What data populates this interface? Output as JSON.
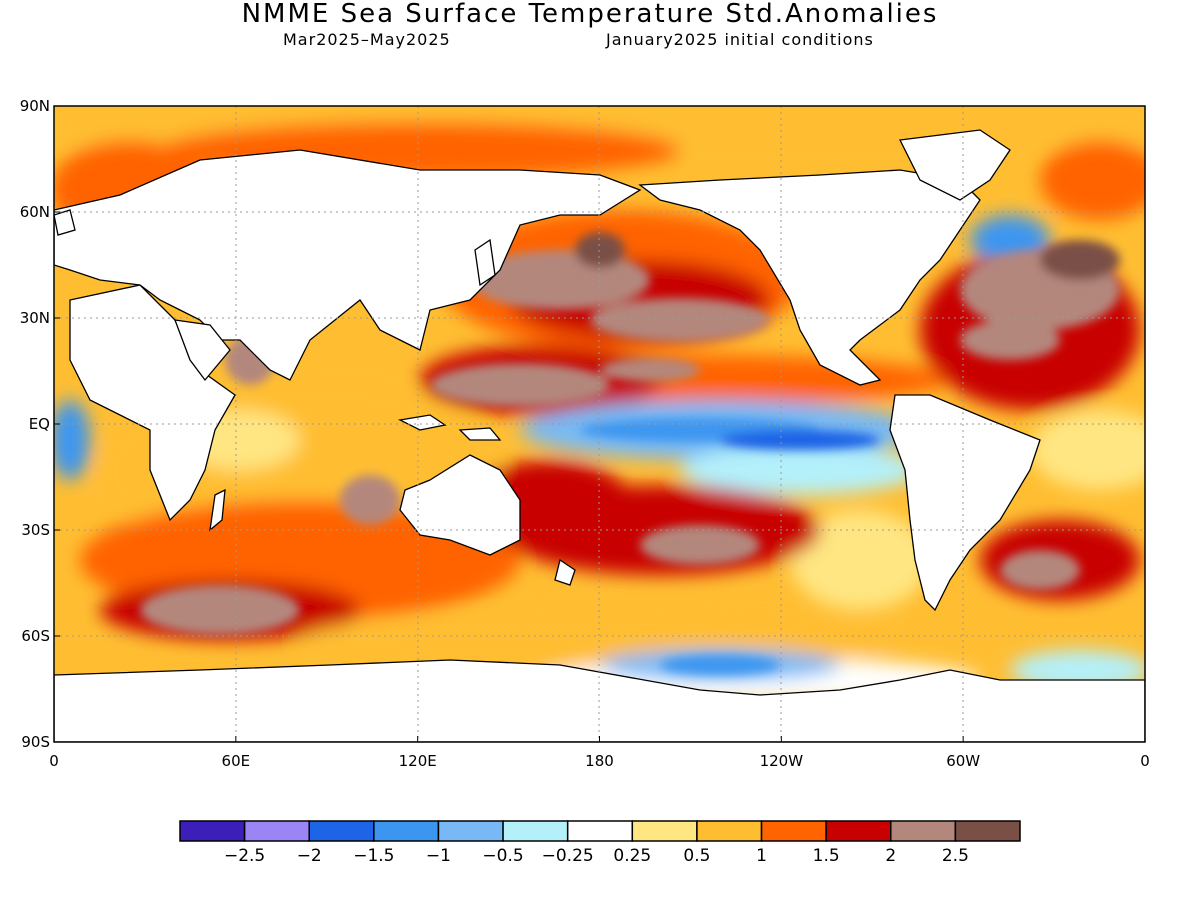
{
  "title": "NMME Sea Surface Temperature Std.Anomalies",
  "subtitle_period": "Mar2025–May2025",
  "subtitle_ic": "January2025 initial conditions",
  "map": {
    "lon_range": [
      0,
      360
    ],
    "lat_range": [
      -90,
      90
    ],
    "grid": "dotted",
    "x_ticks": [
      {
        "lon": 0,
        "label": "0"
      },
      {
        "lon": 60,
        "label": "60E"
      },
      {
        "lon": 120,
        "label": "120E"
      },
      {
        "lon": 180,
        "label": "180"
      },
      {
        "lon": 240,
        "label": "120W"
      },
      {
        "lon": 300,
        "label": "60W"
      },
      {
        "lon": 360,
        "label": "0"
      }
    ],
    "y_ticks": [
      {
        "lat": 90,
        "label": "90N"
      },
      {
        "lat": 60,
        "label": "60N"
      },
      {
        "lat": 30,
        "label": "30N"
      },
      {
        "lat": 0,
        "label": "EQ"
      },
      {
        "lat": -30,
        "label": "30S"
      },
      {
        "lat": -60,
        "label": "60S"
      },
      {
        "lat": -90,
        "label": "90S"
      }
    ]
  },
  "colorbar": {
    "colors": [
      "#3b1fb8",
      "#9b85f5",
      "#1e64e6",
      "#3c96f0",
      "#78b9f5",
      "#b4f0fa",
      "#ffffff",
      "#ffe682",
      "#ffbe32",
      "#ff6400",
      "#c80000",
      "#b4877d",
      "#7a5046"
    ],
    "labels": [
      "−2.5",
      "−2",
      "−1.5",
      "−1",
      "−0.5",
      "−0.25",
      "0.25",
      "0.5",
      "1",
      "1.5",
      "2",
      "2.5"
    ]
  },
  "chart_data": {
    "type": "heatmap",
    "title": "NMME Sea Surface Temperature Std.Anomalies",
    "subtitle": [
      "Mar2025–May2025",
      "January2025 initial conditions"
    ],
    "variable": "Sea Surface Temperature Std.Anomalies",
    "x_range_lon": [
      0,
      360
    ],
    "y_range_lat": [
      -90,
      90
    ],
    "color_levels": [
      -2.5,
      -2,
      -1.5,
      -1,
      -0.5,
      -0.25,
      0.25,
      0.5,
      1,
      1.5,
      2,
      2.5
    ],
    "grid": true,
    "legend": "colorbar bottom"
  }
}
